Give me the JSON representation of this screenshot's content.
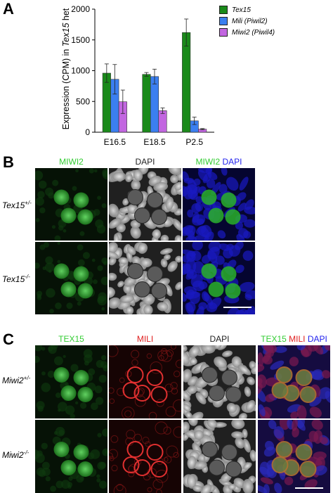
{
  "panels": {
    "a_letter": "A",
    "b_letter": "B",
    "c_letter": "C"
  },
  "chart_data": {
    "type": "bar",
    "categories": [
      "E16.5",
      "E18.5",
      "P2.5"
    ],
    "series": [
      {
        "name": "Tex15",
        "color": "#1a8a1a",
        "values": [
          960,
          940,
          1620
        ],
        "errors": [
          150,
          30,
          220
        ]
      },
      {
        "name": "Mili (Piwil2)",
        "color": "#3b7ff0",
        "values": [
          860,
          905,
          185
        ],
        "errors": [
          240,
          120,
          60
        ]
      },
      {
        "name": "Miwi2 (Piwil4)",
        "color": "#c266e0",
        "values": [
          495,
          350,
          50
        ],
        "errors": [
          190,
          45,
          10
        ]
      }
    ],
    "ylabel_pre": "Expression (CPM) in ",
    "ylabel_italic": "Tex15",
    "ylabel_post": " het",
    "ylim": [
      0,
      2000
    ],
    "yticks": [
      0,
      500,
      1000,
      1500,
      2000
    ],
    "legend_position": "top-right"
  },
  "panel_b": {
    "columns": [
      {
        "parts": [
          {
            "text": "MIWI2",
            "color": "#33cc33"
          }
        ]
      },
      {
        "parts": [
          {
            "text": "DAPI",
            "color": "#222222"
          }
        ]
      },
      {
        "parts": [
          {
            "text": "MIWI2",
            "color": "#33cc33"
          },
          {
            "text": " DAPI",
            "color": "#2222ee"
          }
        ]
      }
    ],
    "rows": [
      {
        "gene": "Tex15",
        "sup": "+/-"
      },
      {
        "gene": "Tex15",
        "sup": "-/-"
      }
    ]
  },
  "panel_c": {
    "columns": [
      {
        "parts": [
          {
            "text": "TEX15",
            "color": "#33cc33"
          }
        ]
      },
      {
        "parts": [
          {
            "text": "MILI",
            "color": "#e02020"
          }
        ]
      },
      {
        "parts": [
          {
            "text": "DAPI",
            "color": "#222222"
          }
        ]
      },
      {
        "parts": [
          {
            "text": "TEX15",
            "color": "#33cc33"
          },
          {
            "text": " MILI",
            "color": "#e02020"
          },
          {
            "text": " DAPI",
            "color": "#2222ee"
          }
        ]
      }
    ],
    "rows": [
      {
        "gene": "Miwi2",
        "sup": "+/-"
      },
      {
        "gene": "Miwi2",
        "sup": "-/-"
      }
    ]
  }
}
